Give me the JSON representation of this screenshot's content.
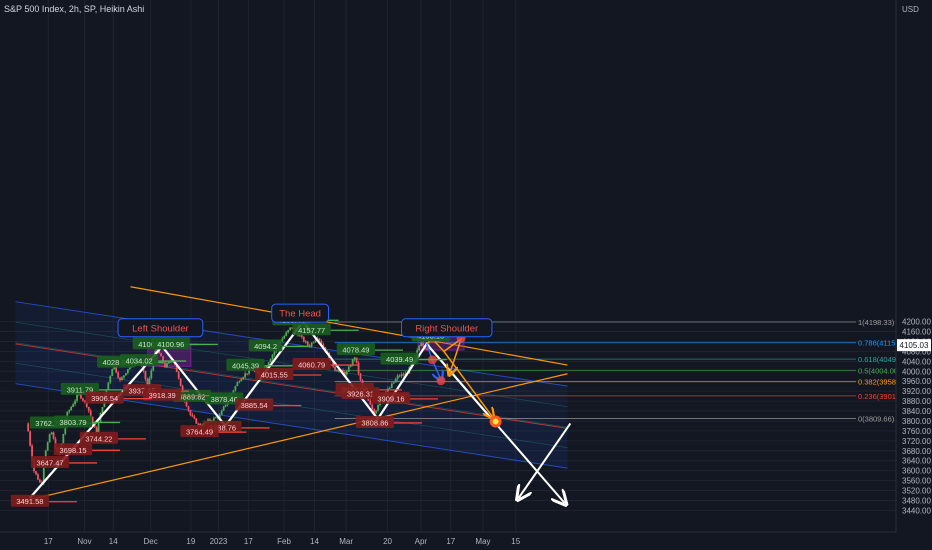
{
  "header": {
    "title": "S&P 500 Index, 2h, SP, Heikin Ashi"
  },
  "currency": "USD",
  "chart_data": {
    "type": "candlestick",
    "title": "S&P 500 Index, 2h, SP, Heikin Ashi",
    "y_range": [
      3430,
      4240
    ],
    "y_ticks": [
      3440,
      3480,
      3520,
      3560,
      3600,
      3640,
      3680,
      3720,
      3760,
      3800,
      3840,
      3880,
      3920,
      3960,
      4000,
      4040,
      4080,
      4120,
      4160,
      4200
    ],
    "x_ticks": [
      {
        "label": "17",
        "xi": 0.37
      },
      {
        "label": "Nov",
        "xi": 1.0
      },
      {
        "label": "14",
        "xi": 1.5
      },
      {
        "label": "Dec",
        "xi": 2.15
      },
      {
        "label": "19",
        "xi": 2.85
      },
      {
        "label": "2023",
        "xi": 3.33
      },
      {
        "label": "17",
        "xi": 3.85
      },
      {
        "label": "Feb",
        "xi": 4.47
      },
      {
        "label": "14",
        "xi": 5.0
      },
      {
        "label": "Mar",
        "xi": 5.55
      },
      {
        "label": "20",
        "xi": 6.27
      },
      {
        "label": "Apr",
        "xi": 6.85
      },
      {
        "label": "17",
        "xi": 7.37
      },
      {
        "label": "May",
        "xi": 7.93
      },
      {
        "label": "15",
        "xi": 8.5
      }
    ],
    "current_price": "4105.03",
    "price_path": [
      {
        "xi": 0.0,
        "p": 3790
      },
      {
        "xi": 0.12,
        "p": 3600
      },
      {
        "xi": 0.25,
        "p": 3540
      },
      {
        "xi": 0.32,
        "p": 3680
      },
      {
        "xi": 0.42,
        "p": 3760
      },
      {
        "xi": 0.55,
        "p": 3650
      },
      {
        "xi": 0.7,
        "p": 3830
      },
      {
        "xi": 0.9,
        "p": 3910
      },
      {
        "xi": 1.05,
        "p": 3860
      },
      {
        "xi": 1.2,
        "p": 3750
      },
      {
        "xi": 1.35,
        "p": 3900
      },
      {
        "xi": 1.5,
        "p": 4030
      },
      {
        "xi": 1.62,
        "p": 3960
      },
      {
        "xi": 1.75,
        "p": 4010
      },
      {
        "xi": 1.95,
        "p": 4050
      },
      {
        "xi": 2.1,
        "p": 3940
      },
      {
        "xi": 2.25,
        "p": 4095
      },
      {
        "xi": 2.4,
        "p": 4020
      },
      {
        "xi": 2.55,
        "p": 4050
      },
      {
        "xi": 2.7,
        "p": 3910
      },
      {
        "xi": 2.85,
        "p": 3820
      },
      {
        "xi": 3.0,
        "p": 3780
      },
      {
        "xi": 3.15,
        "p": 3800
      },
      {
        "xi": 3.35,
        "p": 3820
      },
      {
        "xi": 3.5,
        "p": 3890
      },
      {
        "xi": 3.7,
        "p": 3970
      },
      {
        "xi": 3.9,
        "p": 4010
      },
      {
        "xi": 4.05,
        "p": 3980
      },
      {
        "xi": 4.2,
        "p": 4040
      },
      {
        "xi": 4.4,
        "p": 4120
      },
      {
        "xi": 4.6,
        "p": 4180
      },
      {
        "xi": 4.75,
        "p": 4140
      },
      {
        "xi": 4.9,
        "p": 4100
      },
      {
        "xi": 5.05,
        "p": 4140
      },
      {
        "xi": 5.2,
        "p": 4080
      },
      {
        "xi": 5.35,
        "p": 4010
      },
      {
        "xi": 5.55,
        "p": 3990
      },
      {
        "xi": 5.7,
        "p": 4060
      },
      {
        "xi": 5.8,
        "p": 3960
      },
      {
        "xi": 5.95,
        "p": 3870
      },
      {
        "xi": 6.05,
        "p": 3830
      },
      {
        "xi": 6.15,
        "p": 3900
      },
      {
        "xi": 6.3,
        "p": 3930
      },
      {
        "xi": 6.45,
        "p": 3980
      },
      {
        "xi": 6.6,
        "p": 3990
      },
      {
        "xi": 6.72,
        "p": 4040
      },
      {
        "xi": 6.85,
        "p": 4120
      },
      {
        "xi": 6.95,
        "p": 4090
      },
      {
        "xi": 7.0,
        "p": 4105
      }
    ],
    "zigzag": [
      {
        "xi": 0.05,
        "p": 3490
      },
      {
        "xi": 2.35,
        "p": 4100
      },
      {
        "xi": 3.45,
        "p": 3780
      },
      {
        "xi": 4.8,
        "p": 4200
      },
      {
        "xi": 6.1,
        "p": 3808
      },
      {
        "xi": 6.95,
        "p": 4110
      },
      {
        "xi": 8.15,
        "p": 3790
      },
      {
        "xi": 8.55,
        "p": 3490
      }
    ],
    "shoulder_boxes": [
      {
        "name": "left-shoulder-box",
        "x1": 2.1,
        "x2": 2.85,
        "p1": 4110,
        "p2": 4020
      },
      {
        "name": "right-shoulder-box",
        "x1": 6.8,
        "x2": 7.6,
        "p1": 4150,
        "p2": 4085
      }
    ],
    "orange_trendlines": [
      {
        "xi1": 1.8,
        "p1": 4340,
        "xi2": 9.4,
        "p2": 4025
      },
      {
        "xi1": -0.2,
        "p1": 3470,
        "xi2": 9.4,
        "p2": 3990
      }
    ],
    "channels": {
      "upper": {
        "xi1": -0.2,
        "p1": 4280,
        "xi2": 9.4,
        "p2": 3940
      },
      "mid": {
        "xi1": -0.2,
        "p1": 4110,
        "xi2": 9.4,
        "p2": 3770
      },
      "lower": {
        "xi1": -0.2,
        "p1": 3950,
        "xi2": 9.4,
        "p2": 3610
      }
    },
    "fib_levels": [
      {
        "label": "1(4198.33)",
        "price": 4198.33,
        "color": "#9e9e9e"
      },
      {
        "label": "0.786(4115.",
        "price": 4115,
        "color": "#2196f3"
      },
      {
        "label": "0.618(4049.",
        "price": 4049,
        "color": "#26a69a"
      },
      {
        "label": "0.5(4004.00",
        "price": 4004,
        "color": "#4caf50"
      },
      {
        "label": "0.382(3958.",
        "price": 3958,
        "color": "#ff9800"
      },
      {
        "label": "0.236(3901.",
        "price": 3901,
        "color": "#f44336"
      },
      {
        "label": "0(3809.66)",
        "price": 3809.66,
        "color": "#9e9e9e"
      }
    ],
    "annotations": [
      {
        "name": "left-shoulder-callout",
        "text": "Left Shoulder",
        "kind": "callout",
        "xi": 2.32,
        "p": 4175
      },
      {
        "name": "the-head-callout",
        "text": "The Head",
        "kind": "callout",
        "xi": 4.75,
        "p": 4234
      },
      {
        "name": "right-shoulder-callout",
        "text": "Right Shoulder",
        "kind": "callout",
        "xi": 7.3,
        "p": 4175
      }
    ],
    "price_labels": [
      {
        "text": "4195.44",
        "xi": 4.6,
        "p": 4205,
        "kind": "high"
      },
      {
        "text": "4157.77",
        "xi": 4.95,
        "p": 4165,
        "kind": "high"
      },
      {
        "text": "4100.51",
        "xi": 2.17,
        "p": 4108,
        "kind": "high"
      },
      {
        "text": "4100.96",
        "xi": 2.5,
        "p": 4108,
        "kind": "high"
      },
      {
        "text": "4094.2",
        "xi": 4.15,
        "p": 4100,
        "kind": "high"
      },
      {
        "text": "4078.49",
        "xi": 5.72,
        "p": 4085,
        "kind": "high"
      },
      {
        "text": "4133.13",
        "xi": 7.02,
        "p": 4141,
        "kind": "high"
      },
      {
        "text": "4039.49",
        "xi": 6.48,
        "p": 4047,
        "kind": "high"
      },
      {
        "text": "4028.84",
        "xi": 1.55,
        "p": 4035,
        "kind": "high"
      },
      {
        "text": "4034.02",
        "xi": 1.95,
        "p": 4041,
        "kind": "high"
      },
      {
        "text": "4045.39",
        "xi": 3.8,
        "p": 4022,
        "kind": "high"
      },
      {
        "text": "3911.79",
        "xi": 0.92,
        "p": 3925,
        "kind": "high"
      },
      {
        "text": "3889.82",
        "xi": 2.87,
        "p": 3897,
        "kind": "high"
      },
      {
        "text": "3878.46",
        "xi": 3.43,
        "p": 3887,
        "kind": "high"
      },
      {
        "text": "3762.79",
        "xi": 0.38,
        "p": 3790,
        "kind": "high"
      },
      {
        "text": "3803.79",
        "xi": 0.8,
        "p": 3794,
        "kind": "high"
      },
      {
        "text": "4060.79",
        "xi": 4.95,
        "p": 4025,
        "kind": "low"
      },
      {
        "text": "4015.55",
        "xi": 4.3,
        "p": 3985,
        "kind": "low"
      },
      {
        "text": "3937.65",
        "xi": 2.0,
        "p": 3920,
        "kind": "low"
      },
      {
        "text": "3918.39",
        "xi": 2.35,
        "p": 3902,
        "kind": "low"
      },
      {
        "text": "3906.54",
        "xi": 1.35,
        "p": 3890,
        "kind": "low"
      },
      {
        "text": "3943.08",
        "xi": 5.7,
        "p": 3925,
        "kind": "low"
      },
      {
        "text": "3926.31",
        "xi": 5.8,
        "p": 3908,
        "kind": "low"
      },
      {
        "text": "3909.16",
        "xi": 6.33,
        "p": 3889,
        "kind": "low"
      },
      {
        "text": "3885.54",
        "xi": 3.95,
        "p": 3862,
        "kind": "low"
      },
      {
        "text": "3808.86",
        "xi": 6.05,
        "p": 3792,
        "kind": "low"
      },
      {
        "text": "3788.76",
        "xi": 3.4,
        "p": 3772,
        "kind": "low"
      },
      {
        "text": "3764.49",
        "xi": 3.0,
        "p": 3755,
        "kind": "low"
      },
      {
        "text": "3744.22",
        "xi": 1.25,
        "p": 3728,
        "kind": "low"
      },
      {
        "text": "3698.15",
        "xi": 0.8,
        "p": 3682,
        "kind": "low"
      },
      {
        "text": "3647.47",
        "xi": 0.4,
        "p": 3631,
        "kind": "low"
      },
      {
        "text": "3491.58",
        "xi": 0.05,
        "p": 3475,
        "kind": "low"
      }
    ]
  }
}
